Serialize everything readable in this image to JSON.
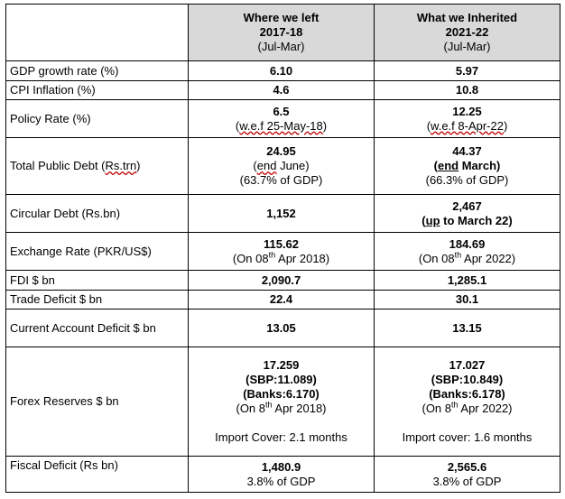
{
  "header": {
    "col1": {
      "title": "Where we left",
      "year": "2017-18",
      "period": "(Jul-Mar)"
    },
    "col2": {
      "title": "What we Inherited",
      "year": "2021-22",
      "period": "(Jul-Mar)"
    }
  },
  "rows": [
    {
      "label": "GDP growth rate (%)",
      "c1": "6.10",
      "c2": "5.97"
    },
    {
      "label": "CPI Inflation (%)",
      "c1": "4.6",
      "c2": "10.8"
    },
    {
      "label": "Policy Rate (%)",
      "c1": "6.5",
      "c1_note": "w.e.f 25-May-18",
      "c2": "12.25",
      "c2_note": "w.e.f 8-Apr-22"
    },
    {
      "label_pre": "Total Public Debt (",
      "label_word": "Rs.trn",
      "label_post": ")",
      "c1": "24.95",
      "c1_n1_word": "end",
      "c1_n1_rest": " June)",
      "c1_n2": "(63.7% of GDP)",
      "c2": "44.37",
      "c2_n1_word": "end",
      "c2_n1_rest": " March)",
      "c2_n2": "(66.3% of GDP)"
    },
    {
      "label": "Circular Debt (Rs.bn)",
      "c1": "1,152",
      "c2": "2,467",
      "c2_n1_word": "up",
      "c2_n1_rest": " to March 22)"
    },
    {
      "label": "Exchange Rate (PKR/US$)",
      "c1": "115.62",
      "c1_note_pre": "(On 08",
      "c1_note_sup": "th",
      "c1_note_post": " Apr 2018)",
      "c2": "184.69",
      "c2_note_pre": "(On 08",
      "c2_note_sup": "th",
      "c2_note_post": " Apr 2022)"
    },
    {
      "label": "FDI $ bn",
      "c1": "2,090.7",
      "c2": "1,285.1"
    },
    {
      "label": "Trade Deficit $ bn",
      "c1": "22.4",
      "c2": "30.1"
    },
    {
      "label": "Current Account Deficit $ bn",
      "c1": "13.05",
      "c2": "13.15"
    },
    {
      "label": "Forex Reserves $ bn",
      "c1": "17.259",
      "c1_sbp": "(SBP:11.089)",
      "c1_banks": "(Banks:6.170)",
      "c1_note_pre": "(On 8",
      "c1_note_sup": "th",
      "c1_note_post": " Apr 2018)",
      "c1_import": "Import Cover: 2.1 months",
      "c2": "17.027",
      "c2_sbp": "(SBP:10.849)",
      "c2_banks": "(Banks:6.178)",
      "c2_note_pre": "(On 8",
      "c2_note_sup": "th",
      "c2_note_post": " Apr 2022)",
      "c2_import": "Import cover: 1.6 months"
    },
    {
      "label": "Fiscal Deficit (Rs bn)",
      "c1": "1,480.9",
      "c1_note": "3.8% of GDP",
      "c2": "2,565.6",
      "c2_note": "3.8% of GDP"
    }
  ]
}
